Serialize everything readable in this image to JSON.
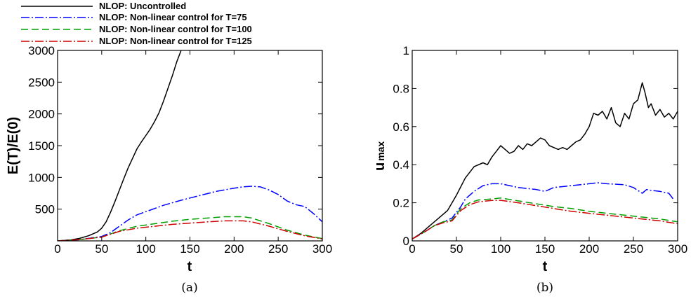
{
  "chart_data": [
    {
      "type": "line",
      "caption": "(a)",
      "xlabel": "t",
      "ylabel": "E(T)/E(0)",
      "xlim": [
        0,
        300
      ],
      "ylim": [
        0,
        3000
      ],
      "xticks": [
        0,
        50,
        100,
        150,
        200,
        250,
        300
      ],
      "yticks": [
        500,
        1000,
        1500,
        2000,
        2500,
        3000
      ],
      "grid": false,
      "legend": "above-left",
      "series": [
        {
          "name": "NLOP: Uncontrolled",
          "color": "#000000",
          "style": "solid",
          "points": [
            [
              0,
              0
            ],
            [
              15,
              15
            ],
            [
              25,
              40
            ],
            [
              35,
              80
            ],
            [
              45,
              140
            ],
            [
              50,
              200
            ],
            [
              55,
              300
            ],
            [
              60,
              450
            ],
            [
              65,
              620
            ],
            [
              70,
              800
            ],
            [
              75,
              980
            ],
            [
              80,
              1150
            ],
            [
              85,
              1300
            ],
            [
              90,
              1450
            ],
            [
              95,
              1560
            ],
            [
              100,
              1660
            ],
            [
              105,
              1760
            ],
            [
              110,
              1880
            ],
            [
              115,
              2020
            ],
            [
              120,
              2200
            ],
            [
              125,
              2400
            ],
            [
              130,
              2600
            ],
            [
              135,
              2820
            ],
            [
              140,
              3000
            ]
          ]
        },
        {
          "name": "NLOP: Non-linear control for T=75",
          "color": "#0000ff",
          "style": "dashdot",
          "points": [
            [
              0,
              0
            ],
            [
              25,
              20
            ],
            [
              50,
              70
            ],
            [
              60,
              130
            ],
            [
              70,
              230
            ],
            [
              80,
              330
            ],
            [
              90,
              410
            ],
            [
              100,
              460
            ],
            [
              120,
              560
            ],
            [
              140,
              640
            ],
            [
              160,
              710
            ],
            [
              180,
              780
            ],
            [
              200,
              830
            ],
            [
              210,
              850
            ],
            [
              220,
              860
            ],
            [
              230,
              850
            ],
            [
              240,
              800
            ],
            [
              250,
              730
            ],
            [
              260,
              630
            ],
            [
              270,
              570
            ],
            [
              280,
              540
            ],
            [
              290,
              430
            ],
            [
              300,
              300
            ]
          ]
        },
        {
          "name": "NLOP: Non-linear control for T=100",
          "color": "#00a000",
          "style": "dashed",
          "points": [
            [
              0,
              0
            ],
            [
              25,
              20
            ],
            [
              50,
              60
            ],
            [
              70,
              160
            ],
            [
              90,
              230
            ],
            [
              110,
              270
            ],
            [
              130,
              310
            ],
            [
              150,
              340
            ],
            [
              170,
              360
            ],
            [
              190,
              380
            ],
            [
              210,
              380
            ],
            [
              220,
              360
            ],
            [
              240,
              270
            ],
            [
              260,
              170
            ],
            [
              280,
              90
            ],
            [
              300,
              35
            ]
          ]
        },
        {
          "name": "NLOP: Non-linear control for T=125",
          "color": "#cc0000",
          "style": "dashdot",
          "points": [
            [
              0,
              0
            ],
            [
              25,
              20
            ],
            [
              50,
              60
            ],
            [
              70,
              150
            ],
            [
              90,
              200
            ],
            [
              110,
              230
            ],
            [
              130,
              260
            ],
            [
              150,
              280
            ],
            [
              170,
              300
            ],
            [
              190,
              315
            ],
            [
              210,
              315
            ],
            [
              220,
              300
            ],
            [
              240,
              230
            ],
            [
              260,
              150
            ],
            [
              280,
              80
            ],
            [
              300,
              30
            ]
          ]
        }
      ]
    },
    {
      "type": "line",
      "caption": "(b)",
      "xlabel": "t",
      "ylabel": "u",
      "ylabel_sub": "max",
      "xlim": [
        0,
        300
      ],
      "ylim": [
        0,
        1
      ],
      "xticks": [
        0,
        50,
        100,
        150,
        200,
        250,
        300
      ],
      "yticks": [
        0,
        0.2,
        0.4,
        0.6,
        0.8,
        1
      ],
      "grid": false,
      "series": [
        {
          "name": "NLOP: Uncontrolled",
          "color": "#000000",
          "style": "solid",
          "points": [
            [
              0,
              0.01
            ],
            [
              10,
              0.04
            ],
            [
              20,
              0.08
            ],
            [
              30,
              0.12
            ],
            [
              40,
              0.16
            ],
            [
              50,
              0.24
            ],
            [
              60,
              0.33
            ],
            [
              70,
              0.39
            ],
            [
              80,
              0.41
            ],
            [
              85,
              0.4
            ],
            [
              90,
              0.44
            ],
            [
              95,
              0.47
            ],
            [
              100,
              0.5
            ],
            [
              105,
              0.48
            ],
            [
              110,
              0.46
            ],
            [
              115,
              0.47
            ],
            [
              120,
              0.5
            ],
            [
              125,
              0.48
            ],
            [
              130,
              0.51
            ],
            [
              135,
              0.5
            ],
            [
              140,
              0.52
            ],
            [
              145,
              0.54
            ],
            [
              150,
              0.53
            ],
            [
              155,
              0.5
            ],
            [
              160,
              0.49
            ],
            [
              165,
              0.48
            ],
            [
              170,
              0.49
            ],
            [
              175,
              0.48
            ],
            [
              180,
              0.5
            ],
            [
              185,
              0.52
            ],
            [
              190,
              0.53
            ],
            [
              195,
              0.56
            ],
            [
              200,
              0.6
            ],
            [
              205,
              0.67
            ],
            [
              210,
              0.66
            ],
            [
              215,
              0.68
            ],
            [
              220,
              0.64
            ],
            [
              225,
              0.7
            ],
            [
              230,
              0.62
            ],
            [
              235,
              0.6
            ],
            [
              240,
              0.67
            ],
            [
              245,
              0.64
            ],
            [
              250,
              0.72
            ],
            [
              255,
              0.74
            ],
            [
              260,
              0.83
            ],
            [
              263,
              0.78
            ],
            [
              267,
              0.7
            ],
            [
              270,
              0.72
            ],
            [
              275,
              0.66
            ],
            [
              280,
              0.69
            ],
            [
              285,
              0.65
            ],
            [
              290,
              0.67
            ],
            [
              295,
              0.64
            ],
            [
              300,
              0.68
            ]
          ]
        },
        {
          "name": "NLOP: Non-linear control for T=75",
          "color": "#0000ff",
          "style": "dashdot",
          "points": [
            [
              0,
              0.01
            ],
            [
              15,
              0.05
            ],
            [
              25,
              0.08
            ],
            [
              35,
              0.1
            ],
            [
              45,
              0.12
            ],
            [
              55,
              0.18
            ],
            [
              60,
              0.22
            ],
            [
              70,
              0.26
            ],
            [
              80,
              0.29
            ],
            [
              90,
              0.3
            ],
            [
              100,
              0.3
            ],
            [
              110,
              0.29
            ],
            [
              120,
              0.28
            ],
            [
              130,
              0.275
            ],
            [
              140,
              0.27
            ],
            [
              150,
              0.26
            ],
            [
              160,
              0.28
            ],
            [
              180,
              0.29
            ],
            [
              200,
              0.3
            ],
            [
              210,
              0.305
            ],
            [
              220,
              0.3
            ],
            [
              240,
              0.295
            ],
            [
              250,
              0.28
            ],
            [
              260,
              0.25
            ],
            [
              265,
              0.27
            ],
            [
              270,
              0.265
            ],
            [
              280,
              0.26
            ],
            [
              290,
              0.25
            ],
            [
              295,
              0.22
            ]
          ]
        },
        {
          "name": "NLOP: Non-linear control for T=100",
          "color": "#00a000",
          "style": "dashed",
          "points": [
            [
              0,
              0.01
            ],
            [
              15,
              0.05
            ],
            [
              25,
              0.08
            ],
            [
              35,
              0.1
            ],
            [
              45,
              0.11
            ],
            [
              55,
              0.17
            ],
            [
              65,
              0.2
            ],
            [
              75,
              0.215
            ],
            [
              90,
              0.22
            ],
            [
              100,
              0.225
            ],
            [
              120,
              0.21
            ],
            [
              140,
              0.195
            ],
            [
              160,
              0.18
            ],
            [
              180,
              0.17
            ],
            [
              200,
              0.155
            ],
            [
              220,
              0.145
            ],
            [
              240,
              0.135
            ],
            [
              260,
              0.125
            ],
            [
              280,
              0.115
            ],
            [
              300,
              0.1
            ]
          ]
        },
        {
          "name": "NLOP: Non-linear control for T=125",
          "color": "#cc0000",
          "style": "dashdot",
          "points": [
            [
              0,
              0.01
            ],
            [
              15,
              0.05
            ],
            [
              25,
              0.08
            ],
            [
              35,
              0.095
            ],
            [
              45,
              0.105
            ],
            [
              55,
              0.16
            ],
            [
              65,
              0.19
            ],
            [
              75,
              0.205
            ],
            [
              90,
              0.212
            ],
            [
              100,
              0.213
            ],
            [
              120,
              0.2
            ],
            [
              140,
              0.185
            ],
            [
              160,
              0.17
            ],
            [
              180,
              0.155
            ],
            [
              200,
              0.145
            ],
            [
              220,
              0.135
            ],
            [
              240,
              0.125
            ],
            [
              260,
              0.115
            ],
            [
              280,
              0.105
            ],
            [
              300,
              0.09
            ]
          ]
        }
      ]
    }
  ]
}
